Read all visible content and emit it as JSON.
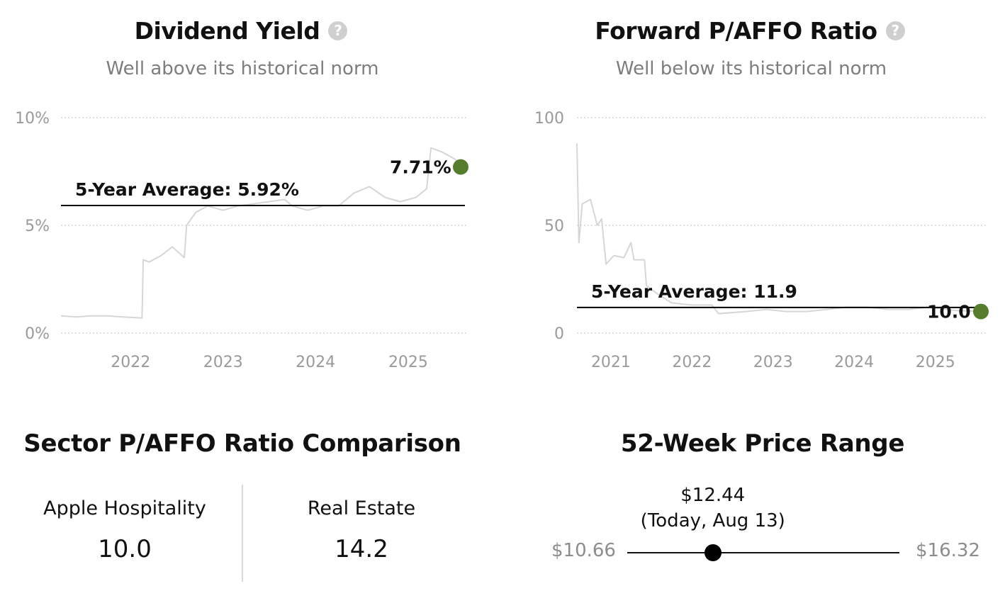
{
  "dividend_yield": {
    "title": "Dividend Yield",
    "help_icon": "question-mark-icon",
    "subtitle": "Well above its historical norm",
    "average_label": "5-Year Average: 5.92%",
    "current_label": "7.71%"
  },
  "forward_paffo": {
    "title": "Forward P/AFFO Ratio",
    "help_icon": "question-mark-icon",
    "subtitle": "Well below its historical norm",
    "average_label": "5-Year Average: 11.9",
    "current_label": "10.0"
  },
  "sector_comparison": {
    "title": "Sector P/AFFO Ratio Comparison",
    "company_name": "Apple Hospitality",
    "company_value": "10.0",
    "sector_name": "Real Estate",
    "sector_value": "14.2"
  },
  "price_range": {
    "title": "52-Week Price Range",
    "low": "$10.66",
    "high": "$16.32",
    "current_price": "$12.44",
    "current_note": "(Today, Aug 13)",
    "low_value": 10.66,
    "high_value": 16.32,
    "current_value": 12.44
  },
  "colors": {
    "line": "#d6d6d6",
    "average_line": "#000000",
    "current_marker": "#567d2e",
    "grid": "#cccccc"
  },
  "chart_data": [
    {
      "type": "line",
      "title": "Dividend Yield",
      "subtitle": "Well above its historical norm",
      "unit": "%",
      "ylim": [
        0,
        10
      ],
      "yticks": [
        0,
        5,
        10
      ],
      "ytick_labels": [
        "0%",
        "5%",
        "10%"
      ],
      "xlim": [
        "2021-04-01",
        "2025-08-13"
      ],
      "xticks": [
        "2022-01-01",
        "2023-01-01",
        "2024-01-01",
        "2025-01-01"
      ],
      "xtick_labels": [
        "2022",
        "2023",
        "2024",
        "2025"
      ],
      "grid": true,
      "average": 5.92,
      "average_label": "5-Year Average: 5.92%",
      "current": {
        "date": "2025-08-13",
        "value": 7.71,
        "label": "7.71%"
      },
      "series": [
        {
          "points": [
            [
              "2021-04-01",
              0.8
            ],
            [
              "2021-06-01",
              0.75
            ],
            [
              "2021-08-01",
              0.8
            ],
            [
              "2021-10-01",
              0.8
            ],
            [
              "2021-12-01",
              0.75
            ],
            [
              "2022-02-15",
              0.7
            ],
            [
              "2022-02-20",
              3.4
            ],
            [
              "2022-03-15",
              3.3
            ],
            [
              "2022-05-01",
              3.6
            ],
            [
              "2022-06-15",
              4.0
            ],
            [
              "2022-08-01",
              3.5
            ],
            [
              "2022-08-10",
              5.0
            ],
            [
              "2022-09-15",
              5.6
            ],
            [
              "2022-11-01",
              5.9
            ],
            [
              "2023-01-01",
              5.7
            ],
            [
              "2023-03-01",
              5.9
            ],
            [
              "2023-05-01",
              6.0
            ],
            [
              "2023-07-01",
              6.1
            ],
            [
              "2023-09-01",
              6.2
            ],
            [
              "2023-10-01",
              5.9
            ],
            [
              "2023-12-01",
              5.7
            ],
            [
              "2024-02-01",
              5.9
            ],
            [
              "2024-04-01",
              5.9
            ],
            [
              "2024-06-01",
              6.5
            ],
            [
              "2024-08-01",
              6.8
            ],
            [
              "2024-10-01",
              6.3
            ],
            [
              "2024-12-01",
              6.1
            ],
            [
              "2025-02-01",
              6.3
            ],
            [
              "2025-03-15",
              6.7
            ],
            [
              "2025-04-01",
              8.6
            ],
            [
              "2025-05-15",
              8.4
            ],
            [
              "2025-07-01",
              8.1
            ],
            [
              "2025-08-13",
              7.71
            ]
          ]
        }
      ]
    },
    {
      "type": "line",
      "title": "Forward P/AFFO Ratio",
      "subtitle": "Well below its historical norm",
      "ylim": [
        0,
        100
      ],
      "yticks": [
        0,
        50,
        100
      ],
      "ytick_labels": [
        "0",
        "50",
        "100"
      ],
      "xlim": [
        "2020-08-01",
        "2025-08-13"
      ],
      "xticks": [
        "2021-01-01",
        "2022-01-01",
        "2023-01-01",
        "2024-01-01",
        "2025-01-01"
      ],
      "xtick_labels": [
        "2021",
        "2022",
        "2023",
        "2024",
        "2025"
      ],
      "grid": true,
      "average": 11.9,
      "average_label": "5-Year Average: 11.9",
      "current": {
        "date": "2025-08-13",
        "value": 10.0,
        "label": "10.0"
      },
      "series": [
        {
          "points": [
            [
              "2020-08-01",
              88
            ],
            [
              "2020-08-10",
              42
            ],
            [
              "2020-08-25",
              60
            ],
            [
              "2020-10-01",
              62
            ],
            [
              "2020-11-01",
              50
            ],
            [
              "2020-11-20",
              53
            ],
            [
              "2020-12-10",
              32
            ],
            [
              "2021-01-15",
              36
            ],
            [
              "2021-03-01",
              35
            ],
            [
              "2021-04-01",
              42
            ],
            [
              "2021-04-15",
              34
            ],
            [
              "2021-06-01",
              34
            ],
            [
              "2021-06-10",
              22
            ],
            [
              "2021-08-01",
              18
            ],
            [
              "2021-10-01",
              14
            ],
            [
              "2022-01-01",
              13
            ],
            [
              "2022-04-01",
              13
            ],
            [
              "2022-05-01",
              9
            ],
            [
              "2022-09-01",
              10
            ],
            [
              "2022-12-01",
              11
            ],
            [
              "2023-03-01",
              10
            ],
            [
              "2023-06-01",
              10
            ],
            [
              "2023-09-01",
              11
            ],
            [
              "2023-12-01",
              12
            ],
            [
              "2024-03-01",
              12
            ],
            [
              "2024-06-01",
              11
            ],
            [
              "2024-09-01",
              11
            ],
            [
              "2024-12-01",
              12
            ],
            [
              "2025-04-01",
              10.5
            ],
            [
              "2025-08-13",
              10.0
            ]
          ]
        }
      ]
    }
  ]
}
